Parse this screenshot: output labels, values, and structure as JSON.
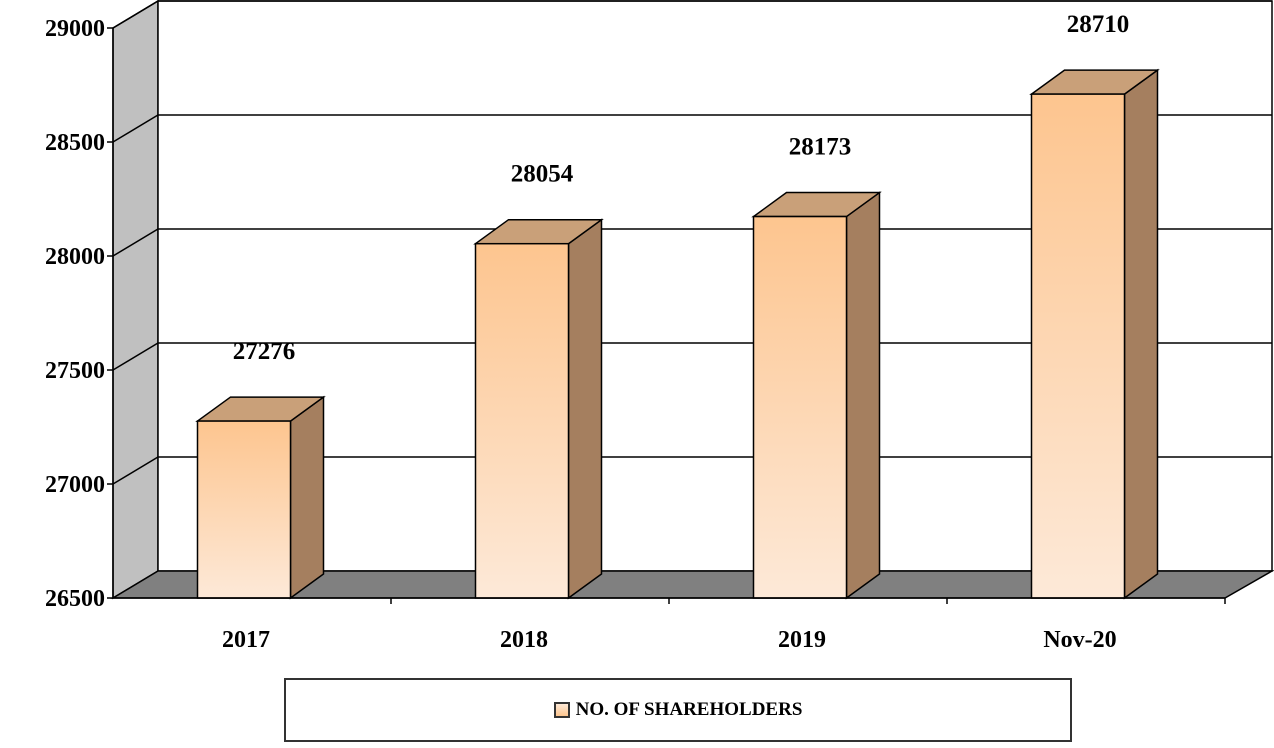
{
  "chart_data": {
    "type": "bar",
    "categories": [
      "2017",
      "2018",
      "2019",
      "Nov-20"
    ],
    "series": [
      {
        "name": "NO. OF SHAREHOLDERS",
        "values": [
          27276,
          28054,
          28173,
          28710
        ]
      }
    ],
    "data_labels": [
      "27276",
      "28054",
      "28173",
      "28710"
    ],
    "yticks": [
      "26500",
      "27000",
      "27500",
      "28000",
      "28500",
      "29000"
    ],
    "ylim": [
      26500,
      29000
    ],
    "grid": true,
    "legend_position": "bottom",
    "style": "3d-column",
    "colors": {
      "bar_front_top": "#fdc58f",
      "bar_front_bottom": "#fde9d8",
      "bar_side": "#a57f5f",
      "bar_top": "#c9a079",
      "wall": "#c0c0c0",
      "floor": "#808080"
    }
  },
  "legend": {
    "label": "NO. OF SHAREHOLDERS"
  }
}
